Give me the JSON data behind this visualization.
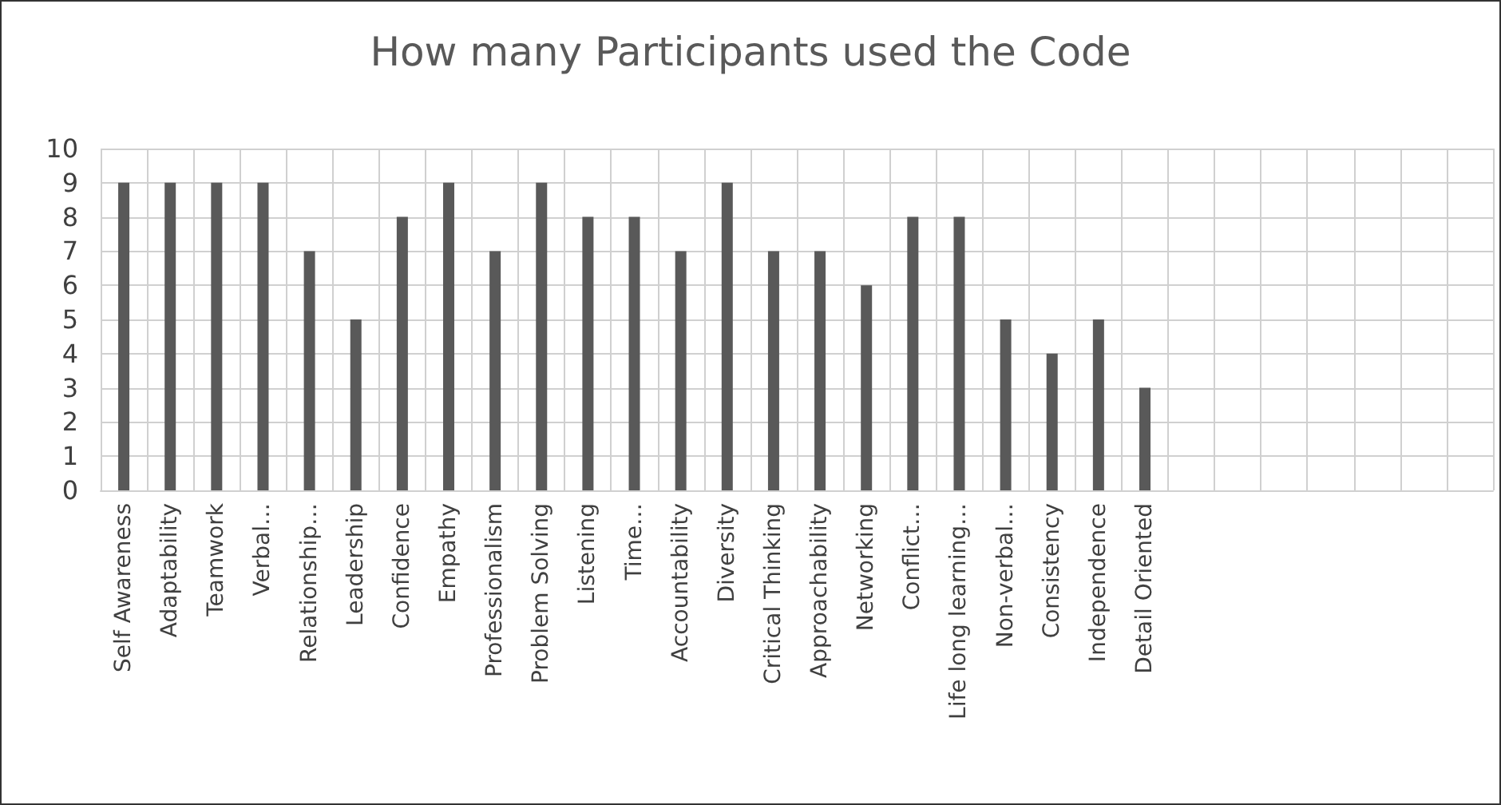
{
  "chart_data": {
    "type": "bar",
    "title": "How many Participants used the Code",
    "categories": [
      "Self Awareness",
      "Adaptability",
      "Teamwork",
      "Verbal…",
      "Relationship…",
      "Leadership",
      "Confidence",
      "Empathy",
      "Professionalism",
      "Problem Solving",
      "Listening",
      "Time…",
      "Accountability",
      "Diversity",
      "Critical Thinking",
      "Approachability",
      "Networking",
      "Conflict…",
      "Life long learning…",
      "Non-verbal…",
      "Consistency",
      "Independence",
      "Detail Oriented",
      null,
      null,
      null,
      null,
      null,
      null,
      null
    ],
    "values": [
      9,
      9,
      9,
      9,
      7,
      5,
      8,
      9,
      7,
      9,
      8,
      8,
      7,
      9,
      7,
      7,
      6,
      8,
      8,
      5,
      4,
      5,
      3,
      null,
      null,
      null,
      null,
      null,
      null,
      null
    ],
    "color": "#595959",
    "ylim": [
      0,
      10
    ],
    "yticks": [
      0,
      1,
      2,
      3,
      4,
      5,
      6,
      7,
      8,
      9,
      10
    ],
    "grid": true
  }
}
